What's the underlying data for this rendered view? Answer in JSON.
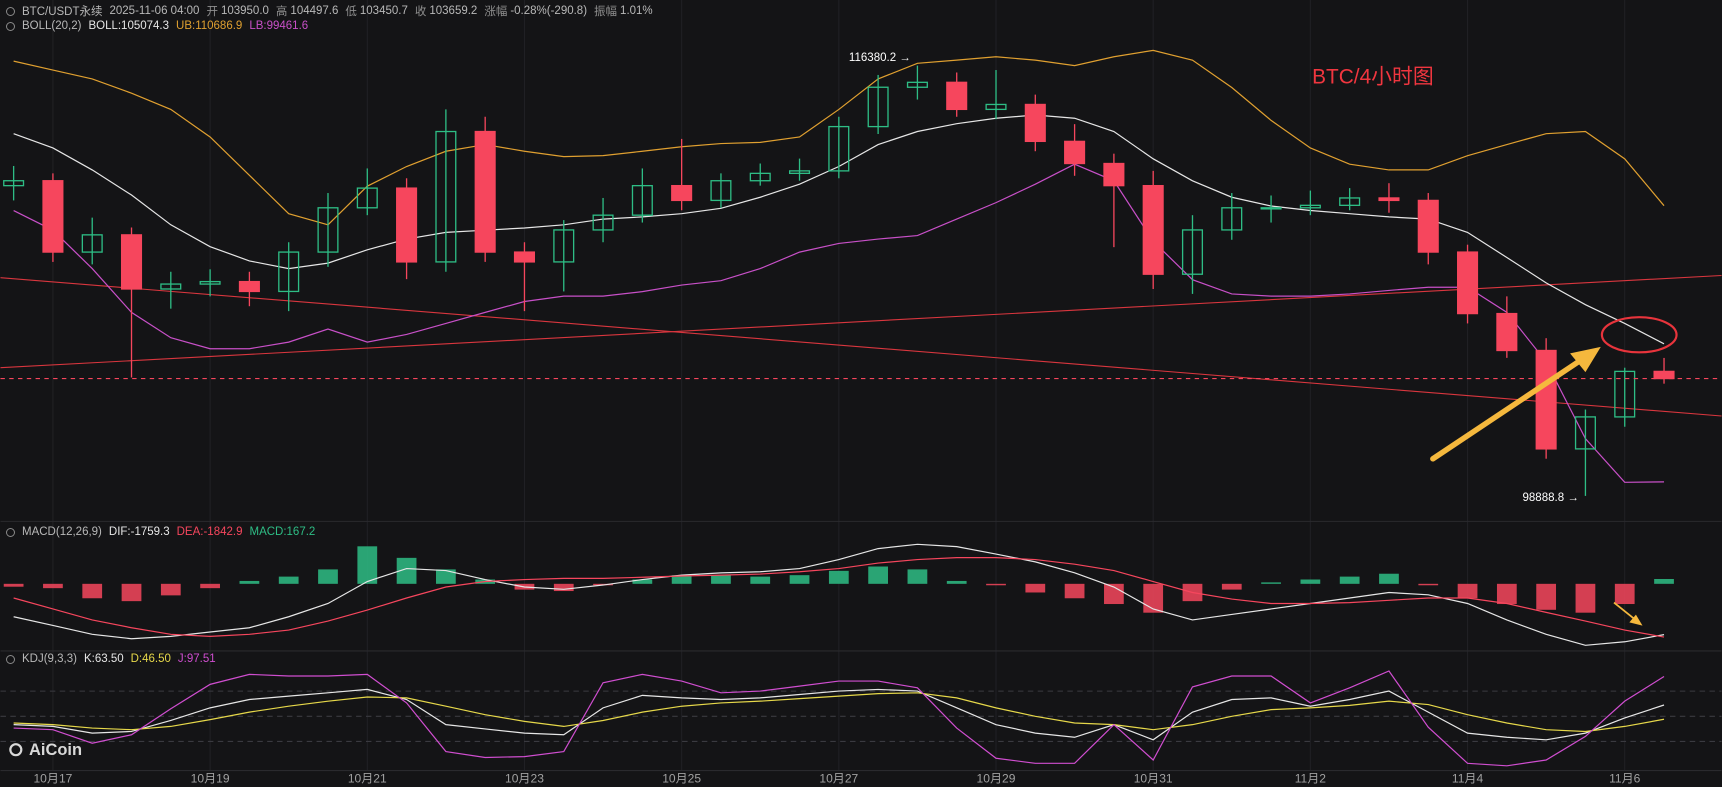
{
  "header": {
    "symbol": "BTC/USDT永续",
    "time": "2025-11-06 04:00",
    "fields": [
      {
        "label": "开",
        "value": "103950.0"
      },
      {
        "label": "高",
        "value": "104497.6"
      },
      {
        "label": "低",
        "value": "103450.7"
      },
      {
        "label": "收",
        "value": "103659.2"
      },
      {
        "label": "涨幅",
        "value": "-0.28%(-290.8)"
      },
      {
        "label": "振幅",
        "value": "1.01%"
      }
    ]
  },
  "watermark": "AiCoin",
  "chart_data": [
    {
      "type": "candlestick",
      "title": "BTC/4小时图",
      "indicator": "BOLL(20,2)",
      "categories": [
        null,
        "10月17",
        null,
        null,
        null,
        "10月19",
        null,
        null,
        null,
        "10月21",
        null,
        null,
        null,
        "10月23",
        null,
        null,
        null,
        "10月25",
        null,
        null,
        null,
        "10月27",
        null,
        null,
        null,
        "10月29",
        null,
        null,
        null,
        "10月31",
        null,
        null,
        null,
        "11月2",
        null,
        null,
        null,
        "11月4",
        null,
        null,
        null,
        "11月6",
        null
      ],
      "open": [
        111500,
        111700,
        108800,
        109500,
        107300,
        107500,
        107600,
        107200,
        108800,
        110600,
        111400,
        108400,
        113700,
        108800,
        108400,
        109700,
        110300,
        111500,
        110900,
        111700,
        112000,
        112100,
        113900,
        115500,
        115700,
        114600,
        114800,
        113300,
        112400,
        111500,
        107900,
        109700,
        110600,
        110600,
        110700,
        111000,
        110900,
        108800,
        106300,
        104800,
        100800,
        102100,
        103950
      ],
      "high": [
        112300,
        112000,
        110200,
        109800,
        108000,
        108100,
        108000,
        109200,
        111200,
        112200,
        111800,
        114600,
        114300,
        109200,
        110100,
        111000,
        112200,
        113400,
        112000,
        112400,
        112600,
        114300,
        116000,
        116380.2,
        116100,
        116200,
        115200,
        114000,
        112800,
        112100,
        110300,
        111200,
        111100,
        111300,
        111400,
        111600,
        111200,
        109100,
        107000,
        105300,
        102400,
        104100,
        104497.6
      ],
      "low": [
        110900,
        108400,
        108300,
        103700,
        106500,
        107000,
        106600,
        106400,
        108200,
        110300,
        107700,
        108000,
        108400,
        106400,
        107200,
        109200,
        110000,
        110500,
        110600,
        111500,
        111700,
        111800,
        113600,
        115000,
        114300,
        114200,
        112900,
        111900,
        109000,
        107300,
        107100,
        109300,
        110000,
        110300,
        110500,
        110400,
        108300,
        105900,
        104500,
        100400,
        98888.8,
        101700,
        103450.7
      ],
      "close": [
        111700,
        108800,
        109500,
        107300,
        107500,
        107600,
        107200,
        108800,
        110600,
        111400,
        108400,
        113700,
        108800,
        108400,
        109700,
        110300,
        111500,
        110900,
        111700,
        112000,
        112100,
        113900,
        115500,
        115700,
        114600,
        114800,
        113300,
        112400,
        111500,
        107900,
        109700,
        110600,
        110600,
        110700,
        111000,
        110900,
        108800,
        106300,
        104800,
        100800,
        102100,
        103950,
        103659.2
      ],
      "up_color": "#2ebd85",
      "down_color": "#f6465d",
      "ylim": [
        98300,
        118600
      ],
      "high_label": {
        "index": 23,
        "text": "116380.2 →"
      },
      "low_label": {
        "index": 40,
        "text": "98888.8 →"
      },
      "series": [
        {
          "label": "BOLL:105074.3",
          "color": "#e6e6e6",
          "values": [
            113610,
            113030,
            112140,
            111120,
            109910,
            109020,
            108440,
            108130,
            108350,
            108890,
            109330,
            109600,
            109690,
            109780,
            109910,
            110140,
            110230,
            110360,
            110580,
            111030,
            111560,
            112280,
            113170,
            113700,
            114020,
            114240,
            114370,
            114240,
            113700,
            112590,
            111700,
            111030,
            110670,
            110490,
            110360,
            110230,
            110140,
            109600,
            108580,
            107550,
            106660,
            105900,
            105074.3
          ]
        },
        {
          "label": "UB:110686.9",
          "color": "#e0a030",
          "values": [
            116560,
            116200,
            115840,
            115260,
            114600,
            113480,
            111920,
            110360,
            109910,
            111480,
            112280,
            112900,
            113170,
            112900,
            112680,
            112720,
            112900,
            113080,
            113210,
            113260,
            113480,
            114600,
            115840,
            116470,
            116600,
            116740,
            116600,
            116380,
            116740,
            117000,
            116600,
            115490,
            114150,
            113030,
            112370,
            112140,
            112140,
            112720,
            113170,
            113610,
            113700,
            112590,
            110686.9
          ]
        },
        {
          "label": "LB:99461.6",
          "color": "#c850c8",
          "values": [
            110490,
            109690,
            108130,
            106350,
            105320,
            104870,
            104870,
            105140,
            105670,
            105140,
            105450,
            105900,
            106350,
            106790,
            107010,
            107010,
            107190,
            107460,
            107640,
            108130,
            108800,
            109150,
            109330,
            109470,
            110140,
            110810,
            111560,
            112370,
            111700,
            109240,
            107680,
            107100,
            107010,
            107010,
            107100,
            107240,
            107370,
            107370,
            106350,
            104340,
            101220,
            99440,
            99461.6
          ]
        }
      ]
    },
    {
      "type": "macd",
      "indicator": "MACD(12,26,9)",
      "ylim": [
        -2400,
        2050
      ],
      "series": [
        {
          "label": "DIF:-1759.3",
          "color": "#e6e6e6",
          "values": [
            -1140,
            -1440,
            -1750,
            -1900,
            -1820,
            -1670,
            -1520,
            -1140,
            -680,
            80,
            530,
            460,
            150,
            -110,
            -190,
            -40,
            150,
            300,
            380,
            420,
            530,
            840,
            1220,
            1370,
            1290,
            1030,
            760,
            380,
            -110,
            -870,
            -1250,
            -1060,
            -870,
            -680,
            -490,
            -300,
            -380,
            -680,
            -1250,
            -1750,
            -2130,
            -2010,
            -1759.3
          ]
        },
        {
          "label": "DEA:-1842.9",
          "color": "#f6465d",
          "values": [
            -490,
            -870,
            -1250,
            -1520,
            -1750,
            -1820,
            -1750,
            -1600,
            -1290,
            -910,
            -490,
            -110,
            80,
            150,
            190,
            190,
            230,
            270,
            300,
            340,
            420,
            530,
            720,
            840,
            910,
            910,
            840,
            680,
            460,
            80,
            -300,
            -530,
            -680,
            -680,
            -650,
            -570,
            -490,
            -490,
            -680,
            -990,
            -1290,
            -1600,
            -1842.9
          ]
        },
        {
          "label": "MACD:167.2",
          "type": "bar",
          "color": "#2ebd85",
          "down_color": "#f6465d",
          "values": [
            -100,
            -150,
            -500,
            -600,
            -400,
            -150,
            100,
            250,
            500,
            1300,
            900,
            500,
            150,
            -200,
            -250,
            -50,
            150,
            300,
            300,
            250,
            300,
            450,
            600,
            500,
            100,
            -50,
            -300,
            -500,
            -700,
            -1000,
            -600,
            -200,
            50,
            150,
            250,
            350,
            -50,
            -500,
            -700,
            -900,
            -1000,
            -700,
            167.2
          ]
        }
      ]
    },
    {
      "type": "kdj",
      "indicator": "KDJ(9,3,3)",
      "ylim": [
        -12,
        124
      ],
      "levels": [
        20,
        50,
        80
      ],
      "series": [
        {
          "label": "K:63.50",
          "color": "#e6e6e6",
          "values": [
            40,
            38,
            30,
            32,
            45,
            60,
            70,
            74,
            78,
            82,
            70,
            40,
            35,
            30,
            28,
            60,
            75,
            72,
            70,
            72,
            76,
            80,
            82,
            80,
            60,
            40,
            30,
            25,
            40,
            22,
            55,
            70,
            72,
            62,
            70,
            80,
            55,
            30,
            25,
            22,
            30,
            48,
            63.5
          ]
        },
        {
          "label": "D:46.50",
          "color": "#e6d84a",
          "values": [
            42,
            40,
            36,
            34,
            38,
            46,
            55,
            62,
            68,
            73,
            72,
            62,
            52,
            44,
            38,
            45,
            55,
            62,
            66,
            68,
            71,
            74,
            77,
            78,
            72,
            60,
            50,
            42,
            40,
            34,
            40,
            50,
            58,
            60,
            63,
            68,
            64,
            52,
            42,
            34,
            32,
            38,
            46.5
          ]
        },
        {
          "label": "J:97.51",
          "color": "#d04ed0",
          "values": [
            36,
            34,
            18,
            28,
            59,
            88,
            100,
            98,
            98,
            100,
            66,
            8,
            1,
            2,
            8,
            90,
            100,
            92,
            78,
            80,
            86,
            92,
            92,
            84,
            36,
            0,
            -6,
            -6,
            40,
            -2,
            85,
            98,
            98,
            66,
            84,
            104,
            37,
            -6,
            -9,
            -2,
            26,
            68,
            97.51
          ]
        }
      ]
    }
  ]
}
